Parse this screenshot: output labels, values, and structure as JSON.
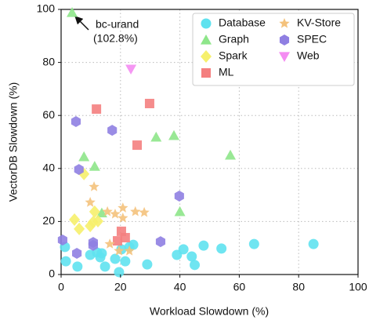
{
  "chart_data": {
    "type": "scatter",
    "xlabel": "Workload Slowdown (%)",
    "ylabel": "VectorDB Slowdown (%)",
    "xlim": [
      0,
      100
    ],
    "xticks": [
      0,
      20,
      40,
      60,
      80,
      100
    ],
    "ylim": [
      0,
      100
    ],
    "yticks": [
      0,
      20,
      40,
      60,
      80,
      100
    ],
    "grid": true,
    "legend": "upper right",
    "annotation": [
      "bc-urand",
      "(102.8%)"
    ],
    "series": [
      {
        "name": "Database",
        "color": "#5fe2ef",
        "marker": "circle",
        "x": [
          1.3,
          1.6,
          5.5,
          9.8,
          12.1,
          13.7,
          13.2,
          14.8,
          18.2,
          19.5,
          20.3,
          21.6,
          23,
          24.3,
          29,
          39,
          41.2,
          44,
          45,
          48,
          54,
          65,
          85
        ],
        "values": [
          10.4,
          5,
          3,
          7.4,
          8.3,
          8,
          6.5,
          3,
          5.9,
          0.9,
          9.5,
          5,
          10.4,
          11.2,
          3.8,
          7.4,
          9.5,
          6.8,
          3.6,
          10.9,
          9.8,
          11.5,
          11.5
        ]
      },
      {
        "name": "Graph",
        "color": "#8ee68a",
        "marker": "triangle-up",
        "x": [
          3.7,
          7.7,
          11.3,
          13.7,
          32,
          38,
          40,
          57
        ],
        "values": [
          98.8,
          44.4,
          40.8,
          23.2,
          51.8,
          52.4,
          23.7,
          45
        ]
      },
      {
        "name": "Spark",
        "color": "#f6f06c",
        "marker": "diamond",
        "x": [
          4.5,
          6.1,
          7.7,
          9.8,
          10.8,
          11.3,
          12.4
        ],
        "values": [
          20.7,
          17.2,
          37.9,
          18.3,
          19.8,
          23.7,
          20.1
        ]
      },
      {
        "name": "ML",
        "color": "#f47f7f",
        "marker": "square",
        "x": [
          11.9,
          29.8,
          25.6,
          20.3,
          21.6,
          19
        ],
        "values": [
          62.4,
          64.5,
          48.8,
          16.3,
          13.9,
          12.7
        ]
      },
      {
        "name": "KV-Store",
        "color": "#f4c27c",
        "marker": "star",
        "x": [
          11.1,
          9.8,
          15.6,
          18.2,
          20.8,
          20.8,
          25,
          28,
          16.4,
          19.5,
          23
        ],
        "values": [
          33.1,
          27.2,
          23.7,
          22.8,
          25.1,
          21.3,
          23.7,
          23.4,
          11.5,
          8.9,
          8.9
        ]
      },
      {
        "name": "SPEC",
        "color": "#8f7fe2",
        "marker": "hexagon",
        "x": [
          5,
          17.2,
          6,
          39.8,
          0.5,
          5.3,
          10.8,
          10.8,
          33.5
        ],
        "values": [
          57.7,
          54.4,
          39.6,
          29.6,
          13,
          8,
          12.1,
          11,
          12.4
        ]
      },
      {
        "name": "Web",
        "color": "#f48cf2",
        "marker": "triangle-down",
        "x": [
          23.5
        ],
        "values": [
          77.5
        ]
      }
    ]
  }
}
